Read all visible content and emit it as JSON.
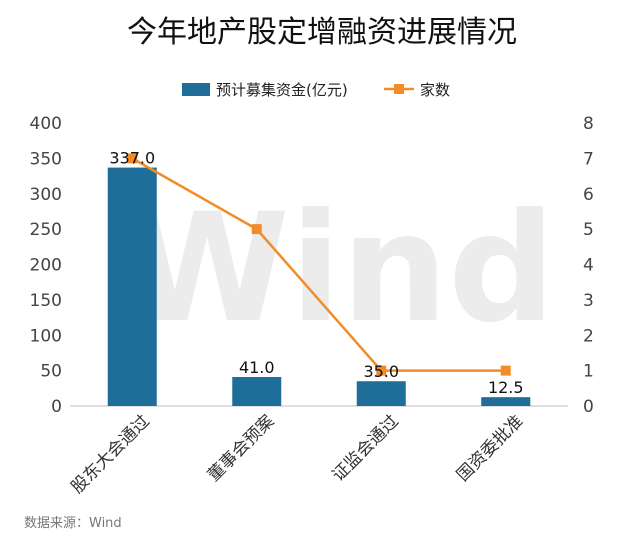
{
  "chart_data": {
    "type": "bar",
    "title": "今年地产股定增融资进展情况",
    "categories": [
      "股东大会通过",
      "董事会预案",
      "证监会通过",
      "国资委批准"
    ],
    "series": [
      {
        "name": "预计募集资金(亿元)",
        "type": "bar",
        "axis": "left",
        "values": [
          337.0,
          41.0,
          35.0,
          12.5
        ],
        "labels": [
          "337.0",
          "41.0",
          "35.0",
          "12.5"
        ],
        "color": "#1f6e9a"
      },
      {
        "name": "家数",
        "type": "line",
        "axis": "right",
        "values": [
          7,
          5,
          1,
          1
        ],
        "color": "#f28c28"
      }
    ],
    "y_left": {
      "min": 0,
      "max": 400,
      "ticks": [
        "0",
        "50",
        "100",
        "150",
        "200",
        "250",
        "300",
        "350",
        "400"
      ]
    },
    "y_right": {
      "min": 0,
      "max": 8,
      "ticks": [
        "0",
        "1",
        "2",
        "3",
        "4",
        "5",
        "6",
        "7",
        "8"
      ]
    },
    "legend_position": "top",
    "grid": false,
    "watermark": "Wind"
  },
  "source_note": "数据来源：Wind"
}
